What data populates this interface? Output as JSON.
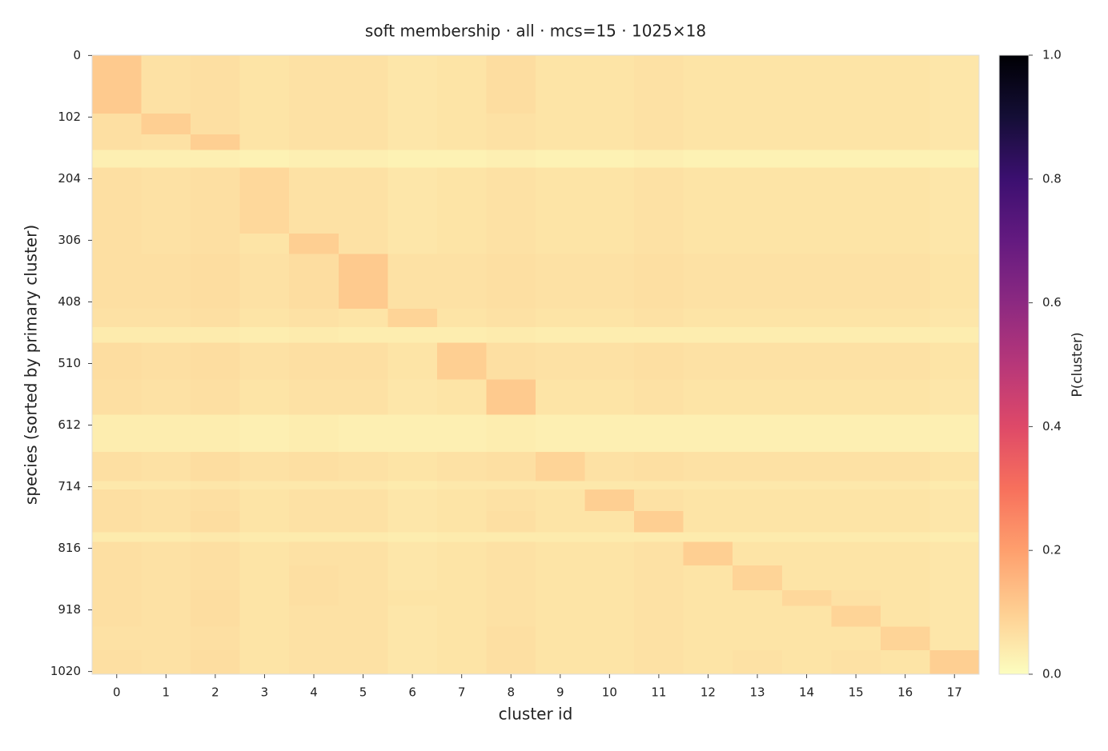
{
  "chart_data": {
    "type": "heatmap",
    "title": "soft membership · all · mcs=15 · 1025×18",
    "xlabel": "cluster id",
    "ylabel": "species (sorted by primary cluster)",
    "colorbar_label": "P(cluster)",
    "colormap": "magma_r",
    "xlim": [
      -0.5,
      17.5
    ],
    "xticks": [
      0,
      1,
      2,
      3,
      4,
      5,
      6,
      7,
      8,
      9,
      10,
      11,
      12,
      13,
      14,
      15,
      16,
      17
    ],
    "ylim": [
      -0.5,
      1024.5
    ],
    "y_inverted": true,
    "yticks": [
      0,
      102,
      204,
      306,
      408,
      510,
      612,
      714,
      816,
      918,
      1020
    ],
    "clim": [
      0,
      1
    ],
    "cticks": [
      {
        "value": 0,
        "label": "0.0"
      },
      0.2,
      0.4,
      0.6,
      0.8,
      {
        "value": 1,
        "label": "1.0"
      }
    ],
    "rows": [
      {
        "start": 0,
        "end": 97,
        "values": [
          0.11,
          0.06,
          0.065,
          0.055,
          0.06,
          0.06,
          0.05,
          0.055,
          0.07,
          0.055,
          0.055,
          0.06,
          0.055,
          0.055,
          0.055,
          0.055,
          0.055,
          0.05
        ]
      },
      {
        "start": 97,
        "end": 131,
        "values": [
          0.065,
          0.1,
          0.065,
          0.055,
          0.06,
          0.06,
          0.05,
          0.055,
          0.06,
          0.055,
          0.055,
          0.06,
          0.055,
          0.055,
          0.055,
          0.055,
          0.055,
          0.05
        ]
      },
      {
        "start": 131,
        "end": 157,
        "values": [
          0.065,
          0.06,
          0.1,
          0.055,
          0.06,
          0.06,
          0.05,
          0.055,
          0.06,
          0.055,
          0.055,
          0.06,
          0.055,
          0.055,
          0.055,
          0.055,
          0.055,
          0.05
        ]
      },
      {
        "start": 157,
        "end": 186,
        "values": [
          0.03,
          0.03,
          0.03,
          0.025,
          0.03,
          0.03,
          0.025,
          0.025,
          0.03,
          0.025,
          0.025,
          0.03,
          0.025,
          0.025,
          0.025,
          0.025,
          0.025,
          0.025
        ]
      },
      {
        "start": 186,
        "end": 295,
        "values": [
          0.065,
          0.06,
          0.065,
          0.08,
          0.06,
          0.06,
          0.05,
          0.055,
          0.06,
          0.055,
          0.055,
          0.06,
          0.055,
          0.055,
          0.055,
          0.055,
          0.055,
          0.05
        ]
      },
      {
        "start": 295,
        "end": 329,
        "values": [
          0.065,
          0.06,
          0.065,
          0.055,
          0.1,
          0.06,
          0.05,
          0.055,
          0.06,
          0.055,
          0.055,
          0.06,
          0.055,
          0.055,
          0.055,
          0.055,
          0.055,
          0.05
        ]
      },
      {
        "start": 329,
        "end": 420,
        "values": [
          0.065,
          0.065,
          0.07,
          0.06,
          0.07,
          0.11,
          0.06,
          0.06,
          0.065,
          0.06,
          0.06,
          0.065,
          0.06,
          0.06,
          0.06,
          0.06,
          0.06,
          0.055
        ]
      },
      {
        "start": 420,
        "end": 450,
        "values": [
          0.06,
          0.06,
          0.065,
          0.055,
          0.06,
          0.055,
          0.09,
          0.055,
          0.06,
          0.055,
          0.055,
          0.06,
          0.055,
          0.055,
          0.055,
          0.055,
          0.055,
          0.05
        ]
      },
      {
        "start": 450,
        "end": 476,
        "values": [
          0.04,
          0.04,
          0.04,
          0.035,
          0.04,
          0.035,
          0.035,
          0.035,
          0.04,
          0.035,
          0.035,
          0.035,
          0.035,
          0.035,
          0.035,
          0.035,
          0.035,
          0.035
        ]
      },
      {
        "start": 476,
        "end": 537,
        "values": [
          0.07,
          0.065,
          0.07,
          0.06,
          0.065,
          0.065,
          0.055,
          0.1,
          0.065,
          0.06,
          0.06,
          0.065,
          0.06,
          0.06,
          0.06,
          0.06,
          0.06,
          0.055
        ]
      },
      {
        "start": 537,
        "end": 595,
        "values": [
          0.065,
          0.06,
          0.065,
          0.055,
          0.06,
          0.06,
          0.05,
          0.055,
          0.11,
          0.055,
          0.055,
          0.06,
          0.055,
          0.055,
          0.055,
          0.055,
          0.055,
          0.05
        ]
      },
      {
        "start": 595,
        "end": 657,
        "values": [
          0.035,
          0.035,
          0.035,
          0.03,
          0.035,
          0.03,
          0.03,
          0.03,
          0.035,
          0.03,
          0.03,
          0.03,
          0.03,
          0.03,
          0.03,
          0.03,
          0.03,
          0.03
        ]
      },
      {
        "start": 657,
        "end": 705,
        "values": [
          0.065,
          0.06,
          0.07,
          0.06,
          0.065,
          0.06,
          0.055,
          0.06,
          0.065,
          0.09,
          0.06,
          0.065,
          0.06,
          0.06,
          0.06,
          0.06,
          0.06,
          0.055
        ]
      },
      {
        "start": 705,
        "end": 719,
        "values": [
          0.045,
          0.045,
          0.05,
          0.045,
          0.045,
          0.045,
          0.04,
          0.045,
          0.045,
          0.045,
          0.045,
          0.045,
          0.045,
          0.045,
          0.045,
          0.045,
          0.045,
          0.04
        ]
      },
      {
        "start": 719,
        "end": 755,
        "values": [
          0.065,
          0.06,
          0.065,
          0.055,
          0.06,
          0.06,
          0.05,
          0.055,
          0.06,
          0.055,
          0.1,
          0.06,
          0.055,
          0.055,
          0.055,
          0.055,
          0.055,
          0.05
        ]
      },
      {
        "start": 755,
        "end": 790,
        "values": [
          0.065,
          0.06,
          0.07,
          0.055,
          0.06,
          0.06,
          0.05,
          0.055,
          0.065,
          0.055,
          0.055,
          0.1,
          0.055,
          0.055,
          0.055,
          0.055,
          0.055,
          0.05
        ]
      },
      {
        "start": 790,
        "end": 806,
        "values": [
          0.04,
          0.04,
          0.045,
          0.04,
          0.04,
          0.04,
          0.035,
          0.04,
          0.04,
          0.04,
          0.04,
          0.04,
          0.04,
          0.04,
          0.04,
          0.04,
          0.04,
          0.035
        ]
      },
      {
        "start": 806,
        "end": 845,
        "values": [
          0.065,
          0.06,
          0.065,
          0.055,
          0.06,
          0.06,
          0.05,
          0.055,
          0.06,
          0.055,
          0.055,
          0.06,
          0.1,
          0.055,
          0.055,
          0.055,
          0.055,
          0.05
        ]
      },
      {
        "start": 845,
        "end": 886,
        "values": [
          0.065,
          0.06,
          0.065,
          0.055,
          0.065,
          0.06,
          0.05,
          0.055,
          0.06,
          0.055,
          0.055,
          0.06,
          0.055,
          0.09,
          0.055,
          0.055,
          0.055,
          0.05
        ]
      },
      {
        "start": 886,
        "end": 912,
        "values": [
          0.065,
          0.06,
          0.07,
          0.055,
          0.065,
          0.06,
          0.055,
          0.055,
          0.06,
          0.055,
          0.055,
          0.06,
          0.055,
          0.055,
          0.08,
          0.06,
          0.055,
          0.05
        ]
      },
      {
        "start": 912,
        "end": 946,
        "values": [
          0.065,
          0.06,
          0.07,
          0.055,
          0.06,
          0.06,
          0.05,
          0.055,
          0.06,
          0.055,
          0.055,
          0.06,
          0.055,
          0.055,
          0.055,
          0.09,
          0.055,
          0.05
        ]
      },
      {
        "start": 946,
        "end": 985,
        "values": [
          0.06,
          0.06,
          0.065,
          0.055,
          0.06,
          0.06,
          0.05,
          0.055,
          0.065,
          0.055,
          0.055,
          0.06,
          0.055,
          0.055,
          0.055,
          0.055,
          0.09,
          0.05
        ]
      },
      {
        "start": 985,
        "end": 1025,
        "values": [
          0.065,
          0.06,
          0.07,
          0.055,
          0.06,
          0.06,
          0.05,
          0.055,
          0.065,
          0.055,
          0.055,
          0.06,
          0.055,
          0.06,
          0.055,
          0.06,
          0.055,
          0.1
        ]
      }
    ]
  }
}
